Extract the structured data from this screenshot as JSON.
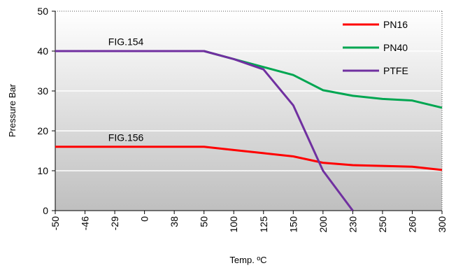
{
  "chart_data": {
    "type": "line",
    "xlabel": "Temp. ºC",
    "ylabel": "Pressure Bar",
    "categories": [
      "-50",
      "-46",
      "-29",
      "0",
      "38",
      "50",
      "100",
      "125",
      "150",
      "200",
      "230",
      "250",
      "260",
      "300"
    ],
    "ylim": [
      0,
      50
    ],
    "yticks": [
      0,
      10,
      20,
      30,
      40,
      50
    ],
    "grid": true,
    "legend_position": "top-right",
    "background": "gradient white to gray",
    "series": [
      {
        "name": "PN16",
        "color": "#ff0000",
        "values": [
          16,
          16,
          16,
          16,
          16,
          16,
          15.2,
          14.4,
          13.6,
          12.0,
          11.4,
          11.2,
          11.0,
          10.2
        ]
      },
      {
        "name": "PN40",
        "color": "#00a651",
        "values": [
          40,
          40,
          40,
          40,
          40,
          40,
          38.0,
          36.0,
          34.0,
          30.2,
          28.8,
          28.0,
          27.6,
          25.8
        ]
      },
      {
        "name": "PTFE",
        "color": "#7030a0",
        "values": [
          40,
          40,
          40,
          40,
          40,
          40,
          38.0,
          35.4,
          26.4,
          10.0,
          0,
          null,
          null,
          null
        ]
      }
    ],
    "annotations": [
      {
        "text": "FIG.154",
        "x": "-29",
        "y": 41.5
      },
      {
        "text": "FIG.156",
        "x": "-29",
        "y": 17.5
      }
    ]
  }
}
